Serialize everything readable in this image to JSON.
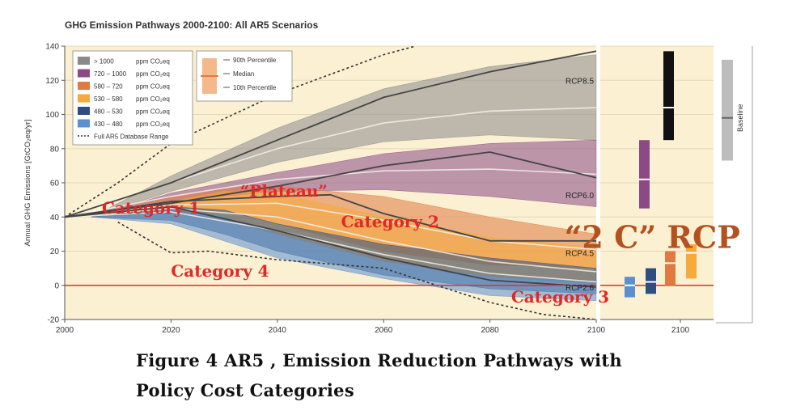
{
  "chart_data": {
    "type": "area",
    "title": "GHG Emission Pathways 2000-2100: All AR5 Scenarios",
    "ylabel": "Annual GHG Emissions [GtCO₂eq/yr]",
    "xlabel": "",
    "xlim": [
      2000,
      2100
    ],
    "ylim": [
      -20,
      140
    ],
    "x_ticks": [
      "2000",
      "2020",
      "2040",
      "2060",
      "2080",
      "2100"
    ],
    "y_ticks": [
      "-20",
      "0",
      "20",
      "40",
      "60",
      "80",
      "100",
      "120",
      "140"
    ],
    "grid": true,
    "legend_position": "top-left",
    "legend": [
      {
        "range": "> 1000",
        "unit": "ppm CO₂eq",
        "color": "#8a8a8a"
      },
      {
        "range": "720 – 1000",
        "unit": "ppm CO₂eq",
        "color": "#8b4a86"
      },
      {
        "range": "580 – 720",
        "unit": "ppm CO₂eq",
        "color": "#e07a40"
      },
      {
        "range": "530 – 580",
        "unit": "ppm CO₂eq",
        "color": "#f4aa3c"
      },
      {
        "range": "480 – 530",
        "unit": "ppm CO₂eq",
        "color": "#2c4f7f"
      },
      {
        "range": "430 – 480",
        "unit": "ppm CO₂eq",
        "color": "#5b8fcf"
      },
      {
        "range": "Full AR5 Database Range",
        "unit": "",
        "color": "#333333"
      }
    ],
    "percentile_legend": [
      "90th Percentile",
      "Median",
      "10th Percentile"
    ],
    "bands": [
      {
        "name": "> 1000",
        "color": "#8a8a8a",
        "x": [
          2005,
          2020,
          2040,
          2060,
          2080,
          2100
        ],
        "lower": [
          40,
          55,
          72,
          84,
          88,
          85
        ],
        "upper": [
          40,
          64,
          92,
          115,
          128,
          135
        ]
      },
      {
        "name": "720 – 1000",
        "color": "#8b4a86",
        "x": [
          2005,
          2020,
          2040,
          2060,
          2080,
          2100
        ],
        "lower": [
          40,
          49,
          55,
          56,
          52,
          46
        ],
        "upper": [
          40,
          54,
          66,
          77,
          83,
          85
        ]
      },
      {
        "name": "580 – 720",
        "color": "#e07a40",
        "x": [
          2005,
          2020,
          2030,
          2040,
          2060,
          2080,
          2100
        ],
        "lower": [
          40,
          43,
          44,
          36,
          20,
          12,
          10
        ],
        "upper": [
          40,
          52,
          57,
          58,
          52,
          40,
          30
        ]
      },
      {
        "name": "530 – 580",
        "color": "#f4aa3c",
        "x": [
          2005,
          2020,
          2030,
          2040,
          2060,
          2080,
          2100
        ],
        "lower": [
          40,
          42,
          38,
          30,
          14,
          5,
          1
        ],
        "upper": [
          40,
          49,
          55,
          54,
          40,
          28,
          22
        ]
      },
      {
        "name": "480 – 530",
        "color": "#2c4f7f",
        "x": [
          2005,
          2020,
          2030,
          2040,
          2060,
          2080,
          2100
        ],
        "lower": [
          40,
          38,
          30,
          20,
          6,
          -2,
          -5
        ],
        "upper": [
          40,
          46,
          44,
          36,
          24,
          16,
          10
        ]
      },
      {
        "name": "430 – 480",
        "color": "#5b8fcf",
        "x": [
          2005,
          2020,
          2030,
          2040,
          2060,
          2080,
          2100
        ],
        "lower": [
          40,
          36,
          26,
          16,
          4,
          -6,
          -9
        ],
        "upper": [
          40,
          44,
          40,
          30,
          14,
          5,
          2
        ]
      }
    ],
    "rcp_lines": [
      {
        "name": "RCP8.5",
        "x": [
          2000,
          2020,
          2040,
          2060,
          2080,
          2100
        ],
        "y": [
          40,
          60,
          85,
          110,
          125,
          137
        ]
      },
      {
        "name": "RCP6.0",
        "x": [
          2000,
          2020,
          2040,
          2060,
          2080,
          2100
        ],
        "y": [
          40,
          48,
          58,
          70,
          78,
          63
        ]
      },
      {
        "name": "RCP4.5",
        "x": [
          2000,
          2020,
          2040,
          2050,
          2060,
          2080,
          2100
        ],
        "y": [
          40,
          49,
          52,
          53,
          42,
          26,
          26
        ]
      },
      {
        "name": "RCP2.6",
        "x": [
          2000,
          2020,
          2040,
          2060,
          2080,
          2100
        ],
        "y": [
          40,
          46,
          32,
          16,
          3,
          -1
        ]
      }
    ],
    "median_lines": [
      {
        "x": [
          2000,
          2020,
          2040,
          2060,
          2080,
          2100
        ],
        "y": [
          40,
          60,
          80,
          95,
          102,
          104
        ]
      },
      {
        "x": [
          2000,
          2020,
          2040,
          2060,
          2080,
          2100
        ],
        "y": [
          40,
          52,
          62,
          67,
          68,
          65
        ]
      },
      {
        "x": [
          2000,
          2020,
          2040,
          2060,
          2080,
          2100
        ],
        "y": [
          40,
          47,
          48,
          38,
          26,
          21
        ]
      },
      {
        "x": [
          2000,
          2020,
          2040,
          2060,
          2080,
          2100
        ],
        "y": [
          40,
          45,
          40,
          26,
          14,
          8
        ]
      },
      {
        "x": [
          2000,
          2020,
          2040,
          2060,
          2080,
          2100
        ],
        "y": [
          40,
          43,
          32,
          18,
          7,
          2
        ]
      }
    ],
    "database_range": [
      {
        "x": [
          2000,
          2010,
          2020,
          2040,
          2060,
          2066
        ],
        "y": [
          40,
          60,
          83,
          112,
          135,
          140
        ]
      },
      {
        "x": [
          2010,
          2020,
          2027,
          2040,
          2060,
          2070,
          2080,
          2090,
          2100
        ],
        "y": [
          37,
          19,
          20,
          15,
          10,
          0,
          -10,
          -17,
          -20
        ]
      }
    ],
    "zero_line": {
      "y": 0,
      "color": "#e0302c"
    },
    "line_labels": [
      {
        "text": "RCP8.5",
        "x": 2100,
        "y": 120
      },
      {
        "text": "RCP6.0",
        "x": 2100,
        "y": 53
      },
      {
        "text": "RCP4.5",
        "x": 2100,
        "y": 19
      },
      {
        "text": "RCP2.6",
        "x": 2100,
        "y": -1
      }
    ],
    "bar_panel": {
      "x_tick": "2100",
      "bars": [
        {
          "color": "#5b8fcf",
          "low": -7,
          "high": 5,
          "median": 0
        },
        {
          "color": "#2c4f7f",
          "low": -5,
          "high": 10,
          "median": 2
        },
        {
          "color": "#e07a40",
          "low": 0,
          "high": 20,
          "median": 13
        },
        {
          "color": "#f4aa3c",
          "low": 4,
          "high": 24,
          "median": 19
        },
        {
          "color": "#8b4a86",
          "low": 45,
          "high": 85,
          "median": 62
        },
        {
          "color": "#111111",
          "low": 85,
          "high": 137,
          "median": 104
        }
      ],
      "baseline": {
        "label": "Baseline",
        "low": 73,
        "high": 132,
        "median": 98,
        "color": "#bdbdbd"
      }
    },
    "annotations": [
      {
        "text": "Category 1",
        "x": 2007,
        "y": 42
      },
      {
        "text": "“Plateau”",
        "x": 2033,
        "y": 52
      },
      {
        "text": "Category 2",
        "x": 2052,
        "y": 34
      },
      {
        "text": "“2 C” RCP",
        "x": 2094,
        "y": 22
      },
      {
        "text": "Category 4",
        "x": 2020,
        "y": 5
      },
      {
        "text": "Category 3",
        "x": 2084,
        "y": -10
      }
    ]
  },
  "caption": {
    "line1": "Figure 4 AR5 , Emission Reduction Pathways with",
    "line2": "Policy Cost Categories"
  }
}
